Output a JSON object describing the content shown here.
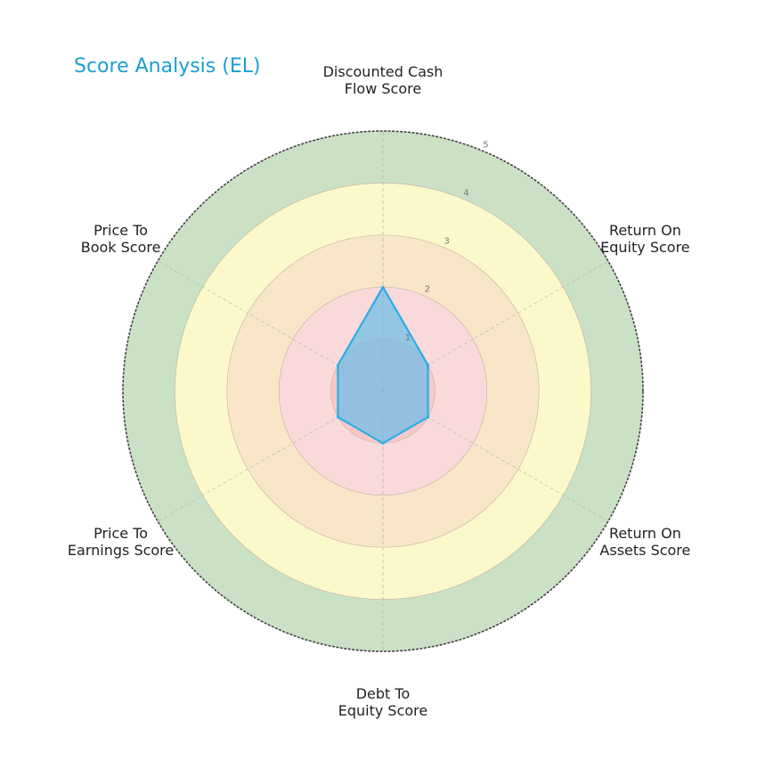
{
  "chart_data": {
    "type": "radar",
    "title": "Score Analysis (EL)",
    "axes": [
      [
        "Discounted Cash",
        "Flow Score"
      ],
      [
        "Return On",
        "Equity Score"
      ],
      [
        "Return On",
        "Assets Score"
      ],
      [
        "Debt To",
        "Equity Score"
      ],
      [
        "Price To",
        "Earnings Score"
      ],
      [
        "Price To",
        "Book Score"
      ]
    ],
    "values": [
      2,
      1,
      1,
      1,
      1,
      1
    ],
    "rlim": [
      0,
      5
    ],
    "ticks": [
      "1",
      "2",
      "3",
      "4",
      "5"
    ],
    "bands": [
      {
        "range": [
          0,
          1
        ],
        "color": "#f8c8c8"
      },
      {
        "range": [
          1,
          2
        ],
        "color": "#f9d9d9"
      },
      {
        "range": [
          2,
          3
        ],
        "color": "#f9e5c8"
      },
      {
        "range": [
          3,
          4
        ],
        "color": "#fbf9c9"
      },
      {
        "range": [
          4,
          5
        ],
        "color": "#cbe1c6"
      }
    ],
    "series_color": "#29aee8",
    "fill_color": "#6cbde6",
    "grid": true
  }
}
